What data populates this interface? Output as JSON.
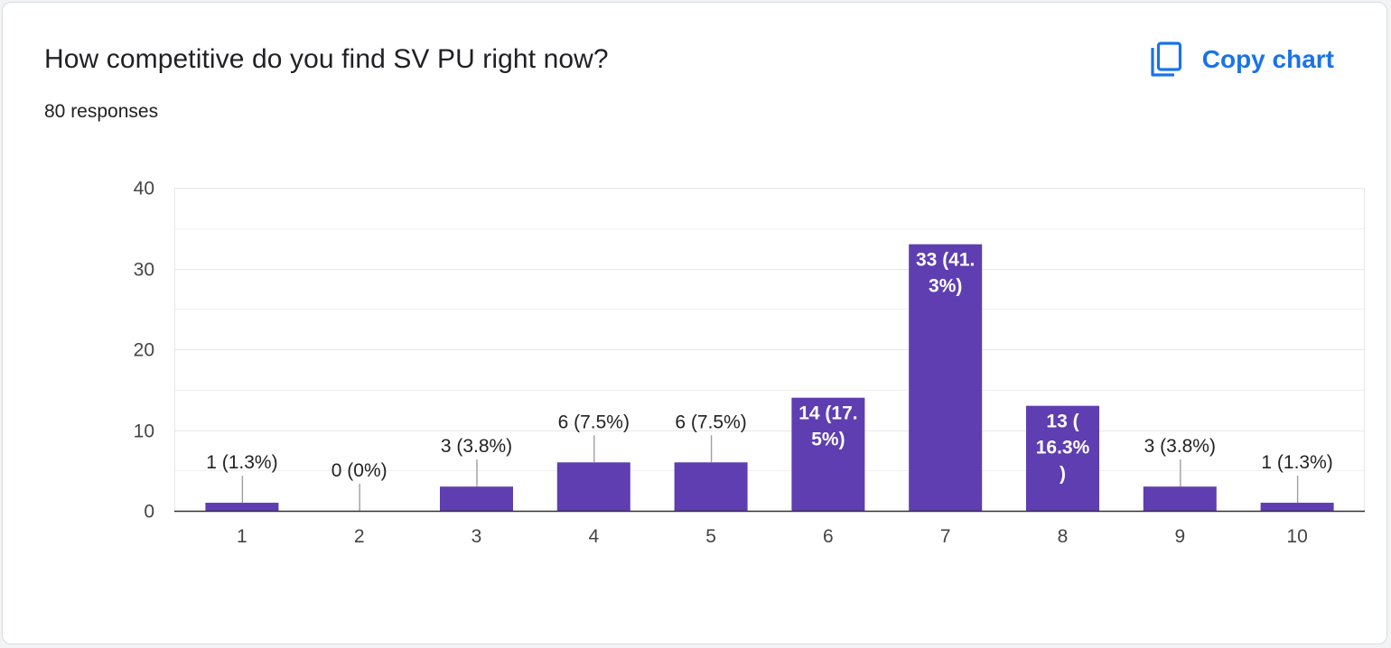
{
  "card": {
    "title": "How competitive do you find SV PU right now?",
    "responses": "80 responses",
    "copy_button_label": "Copy chart",
    "copy_icon": "copy-icon"
  },
  "colors": {
    "bar": "#5e3eb0",
    "accent": "#1a73e8",
    "grid": "#e8e8e8",
    "axis": "#333333"
  },
  "chart_data": {
    "type": "bar",
    "categories": [
      "1",
      "2",
      "3",
      "4",
      "5",
      "6",
      "7",
      "8",
      "9",
      "10"
    ],
    "values": [
      1,
      0,
      3,
      6,
      6,
      14,
      33,
      13,
      3,
      1
    ],
    "data_labels": [
      "1 (1.3%)",
      "0 (0%)",
      "3 (3.8%)",
      "6 (7.5%)",
      "6 (7.5%)",
      "14 (17.5%)",
      "33 (41.3%)",
      "13 (16.3%)",
      "3 (3.8%)",
      "1 (1.3%)"
    ],
    "label_lines": [
      [
        "1 (1.3%)"
      ],
      [
        "0 (0%)"
      ],
      [
        "3 (3.8%)"
      ],
      [
        "6 (7.5%)"
      ],
      [
        "6 (7.5%)"
      ],
      [
        "14 (17.",
        "5%)"
      ],
      [
        "33 (41.",
        "3%)"
      ],
      [
        "13 (",
        "16.3%",
        ")"
      ],
      [
        "3 (3.8%)"
      ],
      [
        "1 (1.3%)"
      ]
    ],
    "label_inside": [
      false,
      false,
      false,
      false,
      false,
      true,
      true,
      true,
      false,
      false
    ],
    "yticks": [
      0,
      10,
      20,
      30,
      40
    ],
    "ylim": [
      0,
      40
    ],
    "xlabel": "",
    "ylabel": "",
    "grid": true,
    "legend": "none"
  }
}
